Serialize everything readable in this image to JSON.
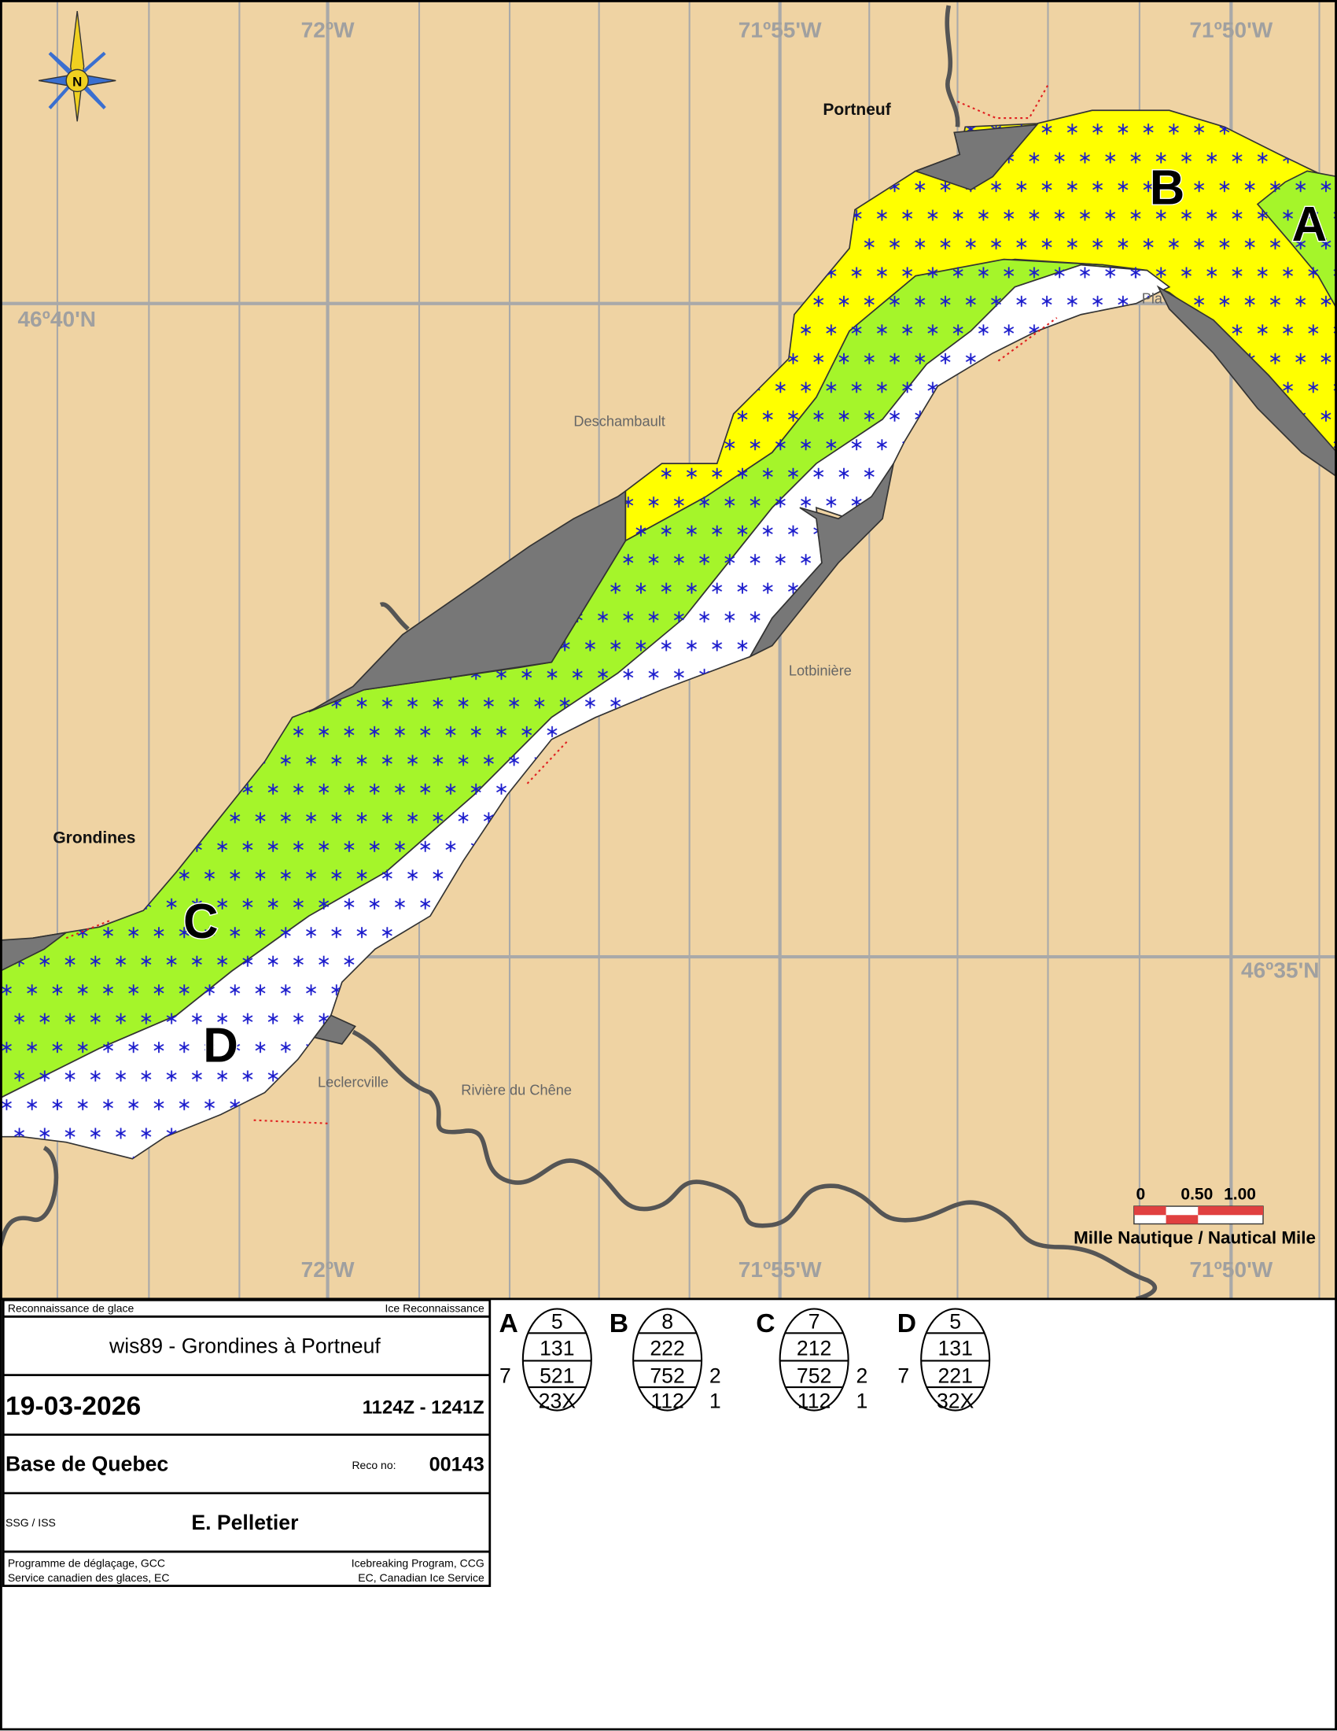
{
  "map": {
    "meridian_labels_top": [
      "72ºW",
      "71º55'W",
      "71º50'W"
    ],
    "meridian_labels_bottom": [
      "72ºW",
      "71º55'W",
      "71º50'W"
    ],
    "parallel_labels": [
      "46º40'N",
      "46º35'N"
    ],
    "places": {
      "portneuf": "Portneuf",
      "deschambault": "Deschambault",
      "lotbiniere": "Lotbinière",
      "grondines": "Grondines",
      "leclercville": "Leclercville",
      "riviere_du_chene": "Rivière du Chêne",
      "la_plage": "Pla"
    },
    "zones": [
      "A",
      "B",
      "C",
      "D"
    ],
    "compass": "N",
    "scale": {
      "ticks": [
        "0",
        "0.50",
        "1.00"
      ],
      "caption": "Mille Nautique / Nautical Mile"
    }
  },
  "title_block": {
    "header_fr": "Reconnaissance de glace",
    "header_en": "Ice Reconnaissance",
    "title": "wis89 - Grondines à Portneuf",
    "date": "19-03-2026",
    "time": "1124Z - 1241Z",
    "base": "Base de Quebec",
    "reco_label": "Reco no:",
    "reco_no": "00143",
    "agency": "SSG / ISS",
    "observer": "E. Pelletier",
    "footer_fr_1": "Programme de déglaçage, GCC",
    "footer_fr_2": "Service canadien des glaces, EC",
    "footer_en_1": "Icebreaking Program, CCG",
    "footer_en_2": "EC, Canadian Ice Service"
  },
  "egg_codes": [
    {
      "label": "A",
      "total": "5",
      "partial": "131",
      "stage": "521",
      "form": "23X",
      "stage_left": "7"
    },
    {
      "label": "B",
      "total": "8",
      "partial": "222",
      "stage": "752",
      "form": "112",
      "stage_right": "2",
      "form_right": "1"
    },
    {
      "label": "C",
      "total": "7",
      "partial": "212",
      "stage": "752",
      "form": "112",
      "stage_right": "2",
      "form_right": "1"
    },
    {
      "label": "D",
      "total": "5",
      "partial": "131",
      "stage": "221",
      "form": "32X",
      "stage_left": "7"
    }
  ]
}
